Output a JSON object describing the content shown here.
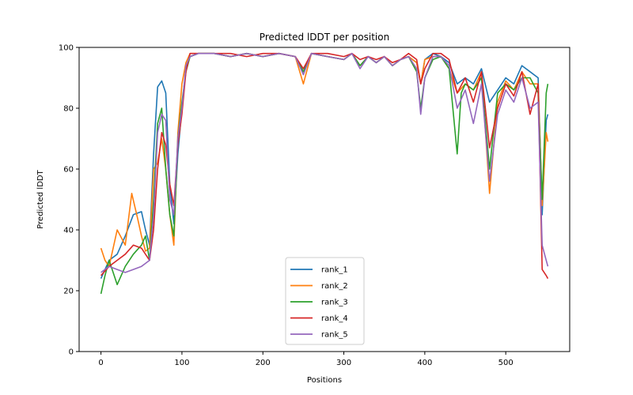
{
  "chart_data": {
    "type": "line",
    "title": "Predicted lDDT per position",
    "xlabel": "Positions",
    "ylabel": "Predicted lDDT",
    "xlim": [
      -27,
      579
    ],
    "ylim": [
      0,
      100
    ],
    "xticks": [
      0,
      100,
      200,
      300,
      400,
      500
    ],
    "yticks": [
      0,
      20,
      40,
      60,
      80,
      100
    ],
    "legend_position": "bottom-center",
    "series": [
      {
        "name": "rank_1",
        "color": "#1f77b4",
        "x": [
          0,
          10,
          20,
          30,
          40,
          50,
          55,
          60,
          65,
          70,
          75,
          80,
          85,
          90,
          95,
          100,
          105,
          110,
          120,
          140,
          160,
          180,
          200,
          220,
          240,
          250,
          260,
          280,
          300,
          310,
          320,
          330,
          340,
          350,
          360,
          370,
          380,
          390,
          395,
          400,
          410,
          420,
          430,
          440,
          450,
          460,
          470,
          480,
          490,
          500,
          510,
          520,
          530,
          540,
          545,
          550,
          552
        ],
        "values": [
          24,
          30,
          32,
          38,
          45,
          46,
          40,
          35,
          65,
          87,
          89,
          85,
          55,
          42,
          65,
          80,
          93,
          97,
          98,
          98,
          97,
          98,
          97,
          98,
          97,
          92,
          98,
          97,
          96,
          98,
          94,
          97,
          95,
          97,
          94,
          96,
          97,
          95,
          88,
          96,
          98,
          97,
          95,
          88,
          90,
          88,
          93,
          82,
          86,
          90,
          88,
          94,
          92,
          90,
          45,
          76,
          78
        ]
      },
      {
        "name": "rank_2",
        "color": "#ff7f0e",
        "x": [
          0,
          5,
          10,
          20,
          30,
          38,
          45,
          50,
          55,
          60,
          65,
          70,
          75,
          80,
          85,
          90,
          95,
          100,
          105,
          110,
          120,
          140,
          160,
          180,
          200,
          220,
          240,
          250,
          260,
          280,
          300,
          310,
          320,
          330,
          340,
          350,
          360,
          370,
          380,
          390,
          395,
          400,
          410,
          420,
          430,
          440,
          450,
          460,
          470,
          480,
          490,
          500,
          510,
          520,
          530,
          540,
          545,
          550,
          552
        ],
        "values": [
          34,
          30,
          28,
          40,
          35,
          52,
          44,
          38,
          33,
          34,
          60,
          62,
          70,
          60,
          45,
          35,
          72,
          88,
          95,
          98,
          98,
          98,
          97,
          98,
          97,
          98,
          97,
          88,
          98,
          97,
          96,
          98,
          94,
          97,
          95,
          97,
          94,
          96,
          97,
          95,
          88,
          96,
          97,
          97,
          93,
          85,
          88,
          86,
          92,
          52,
          82,
          89,
          86,
          92,
          88,
          88,
          48,
          72,
          69
        ]
      },
      {
        "name": "rank_3",
        "color": "#2ca02c",
        "x": [
          0,
          5,
          10,
          20,
          30,
          40,
          50,
          55,
          60,
          65,
          70,
          75,
          80,
          85,
          90,
          95,
          100,
          105,
          110,
          120,
          140,
          160,
          180,
          200,
          220,
          240,
          250,
          260,
          280,
          300,
          310,
          320,
          330,
          340,
          350,
          360,
          370,
          380,
          390,
          395,
          400,
          410,
          420,
          430,
          440,
          445,
          450,
          460,
          470,
          480,
          490,
          500,
          510,
          520,
          530,
          540,
          545,
          550,
          552
        ],
        "values": [
          19,
          25,
          30,
          22,
          28,
          32,
          35,
          38,
          30,
          50,
          75,
          80,
          60,
          45,
          38,
          70,
          82,
          92,
          97,
          98,
          98,
          97,
          98,
          97,
          98,
          97,
          92,
          98,
          97,
          96,
          98,
          94,
          97,
          95,
          97,
          94,
          96,
          97,
          92,
          80,
          90,
          96,
          97,
          93,
          65,
          85,
          88,
          86,
          90,
          60,
          85,
          88,
          86,
          90,
          90,
          85,
          50,
          85,
          88
        ]
      },
      {
        "name": "rank_4",
        "color": "#d62728",
        "x": [
          0,
          10,
          20,
          30,
          40,
          50,
          55,
          60,
          65,
          70,
          75,
          80,
          85,
          90,
          95,
          100,
          105,
          110,
          120,
          140,
          160,
          180,
          200,
          220,
          240,
          250,
          260,
          280,
          300,
          310,
          320,
          330,
          340,
          350,
          360,
          370,
          380,
          390,
          395,
          400,
          410,
          420,
          430,
          440,
          450,
          460,
          470,
          480,
          490,
          500,
          510,
          520,
          530,
          540,
          545,
          550,
          552
        ],
        "values": [
          25,
          28,
          30,
          32,
          35,
          34,
          32,
          30,
          40,
          60,
          72,
          68,
          55,
          48,
          68,
          78,
          92,
          98,
          98,
          98,
          98,
          97,
          98,
          98,
          97,
          93,
          98,
          98,
          97,
          98,
          96,
          97,
          96,
          97,
          95,
          96,
          98,
          96,
          88,
          93,
          98,
          98,
          96,
          85,
          90,
          82,
          92,
          67,
          80,
          88,
          84,
          92,
          78,
          88,
          27,
          25,
          24
        ]
      },
      {
        "name": "rank_5",
        "color": "#9467bd",
        "x": [
          0,
          10,
          20,
          30,
          40,
          50,
          55,
          60,
          65,
          70,
          75,
          80,
          85,
          90,
          95,
          100,
          105,
          110,
          120,
          140,
          160,
          180,
          200,
          220,
          240,
          250,
          260,
          280,
          300,
          310,
          320,
          330,
          340,
          350,
          360,
          370,
          380,
          390,
          395,
          400,
          410,
          420,
          430,
          440,
          450,
          460,
          470,
          480,
          490,
          500,
          510,
          520,
          530,
          540,
          545,
          550,
          552
        ],
        "values": [
          26,
          28,
          27,
          26,
          27,
          28,
          29,
          30,
          45,
          72,
          78,
          76,
          50,
          45,
          70,
          80,
          94,
          97,
          98,
          98,
          97,
          98,
          97,
          98,
          97,
          91,
          98,
          97,
          96,
          98,
          93,
          97,
          95,
          97,
          94,
          96,
          97,
          93,
          78,
          90,
          97,
          97,
          94,
          80,
          86,
          75,
          88,
          56,
          78,
          86,
          82,
          90,
          80,
          82,
          35,
          30,
          28
        ]
      }
    ]
  }
}
